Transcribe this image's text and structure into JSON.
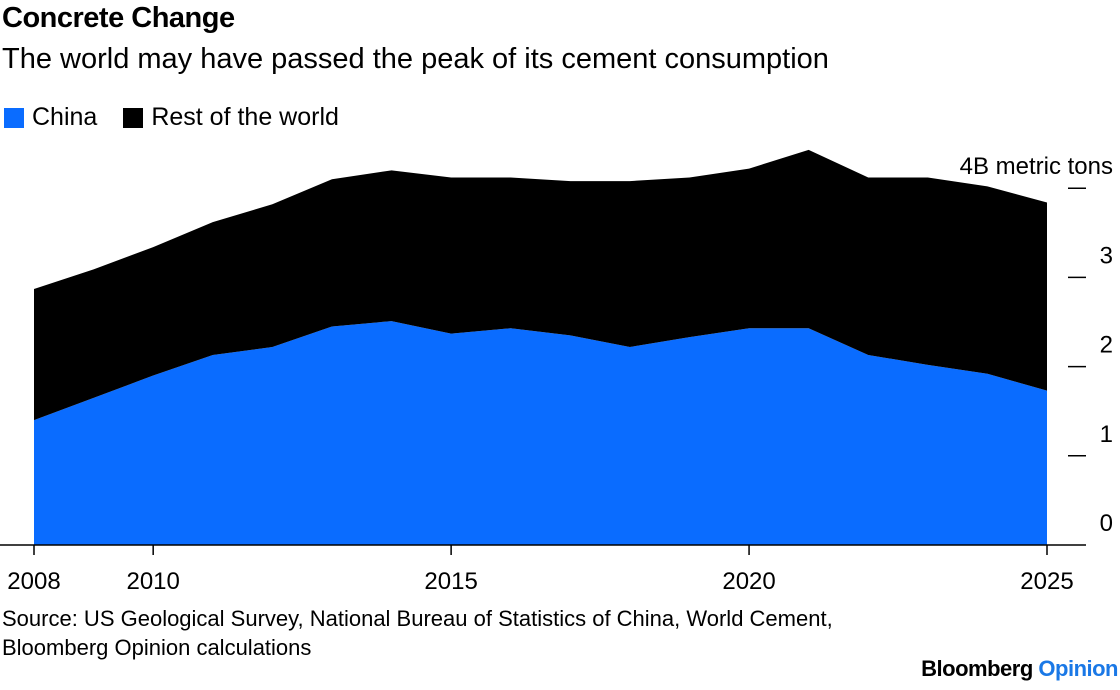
{
  "title": "Concrete Change",
  "subtitle": "The world may have passed the peak of its cement consumption",
  "source": "Source: US Geological Survey, National Bureau of Statistics of China, World Cement, Bloomberg Opinion calculations",
  "brand": {
    "name": "Bloomberg",
    "suffix": "Opinion",
    "suffix_color": "#1a78e6"
  },
  "chart_data": {
    "type": "area",
    "stacked": true,
    "title": "Concrete Change",
    "subtitle": "The world may have passed the peak of its cement consumption",
    "ylabel": "",
    "y_unit_label": "4B metric tons",
    "ylim": [
      0,
      4.4
    ],
    "y_ticks": [
      0,
      1,
      2,
      3,
      4
    ],
    "y_tick_labels": [
      "0",
      "1",
      "2",
      "3",
      "4B metric tons"
    ],
    "x_ticks": [
      2008,
      2010,
      2015,
      2020,
      2025
    ],
    "x_tick_labels": [
      "2008",
      "2010",
      "2015",
      "2020",
      "2025"
    ],
    "x": [
      2008,
      2009,
      2010,
      2011,
      2012,
      2013,
      2014,
      2015,
      2016,
      2017,
      2018,
      2019,
      2020,
      2021,
      2022,
      2023,
      2024,
      2025
    ],
    "legend_position": "top-left",
    "grid": false,
    "series": [
      {
        "name": "China",
        "color": "#0a6cff",
        "values": [
          1.4,
          1.65,
          1.9,
          2.13,
          2.22,
          2.45,
          2.51,
          2.37,
          2.43,
          2.35,
          2.22,
          2.33,
          2.43,
          2.43,
          2.13,
          2.02,
          1.92,
          1.73
        ]
      },
      {
        "name": "Rest of the world",
        "color": "#000000",
        "values": [
          1.47,
          1.44,
          1.44,
          1.49,
          1.6,
          1.65,
          1.69,
          1.75,
          1.69,
          1.73,
          1.86,
          1.79,
          1.79,
          2.0,
          1.99,
          2.1,
          2.1,
          2.11
        ]
      }
    ]
  }
}
